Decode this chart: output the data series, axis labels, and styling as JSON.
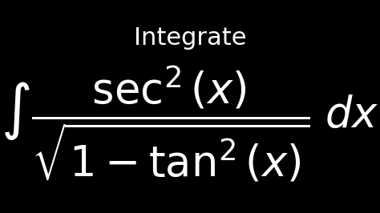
{
  "background_color": "#000000",
  "text_color": "#ffffff",
  "title": "Integrate",
  "title_fontsize": 22,
  "title_fontstyle": "normal",
  "title_fontfamily": "serif",
  "formula": "\\int \\frac{\\sec^2(x)}{\\sqrt{1 - \\tan^2(x)}} \\, dx",
  "formula_fontsize": 38,
  "figsize": [
    4.74,
    2.66
  ],
  "dpi": 100
}
